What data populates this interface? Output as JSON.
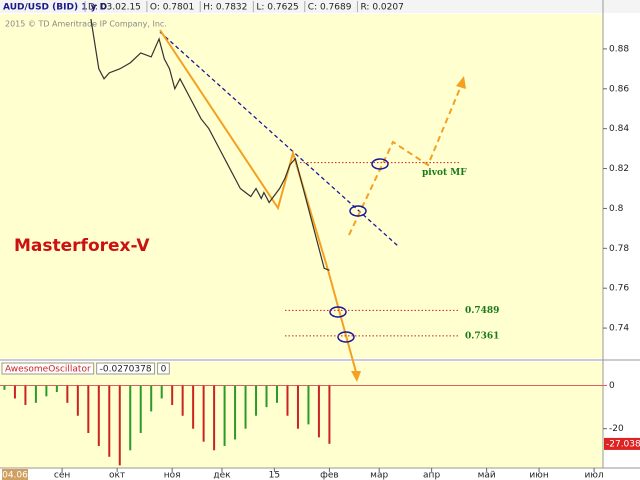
{
  "header": {
    "symbol": "AUD/USD (BID) 1 y D",
    "fields": [
      "D: 03.02.15",
      "O: 0.7801",
      "H: 0.7832",
      "L: 0.7625",
      "C: 0.7689",
      "R: 0.0207"
    ]
  },
  "chart_data": [
    {
      "type": "line",
      "copyright": "2015 © TD Ameritrade IP Company, Inc.",
      "watermark": "Masterforex-V",
      "xlim": [
        -5.7,
        224.4
      ],
      "ylim": [
        0.725,
        0.8975
      ],
      "yticks": [
        0.74,
        0.76,
        0.78,
        0.8,
        0.82,
        0.84,
        0.86,
        0.88
      ],
      "x": [
        29,
        32,
        34,
        36,
        40,
        44,
        48,
        52,
        55,
        57,
        59,
        61,
        63,
        67,
        71,
        74,
        78,
        82,
        84,
        86,
        88,
        90,
        92,
        94,
        95,
        97,
        101,
        103,
        105,
        107,
        109,
        111,
        113,
        115,
        116,
        118,
        120
      ],
      "series": [
        {
          "color": "#333333",
          "values": [
            0.895,
            0.87,
            0.865,
            0.868,
            0.87,
            0.873,
            0.878,
            0.876,
            0.885,
            0.875,
            0.87,
            0.86,
            0.865,
            0.855,
            0.845,
            0.84,
            0.83,
            0.82,
            0.815,
            0.81,
            0.808,
            0.806,
            0.81,
            0.805,
            0.808,
            0.803,
            0.81,
            0.815,
            0.822,
            0.825,
            0.815,
            0.805,
            0.795,
            0.785,
            0.78,
            0.77,
            0.769
          ]
        }
      ],
      "levels": [
        {
          "value": 0.823,
          "label": "pivot MF"
        },
        0.7489,
        0.7361
      ]
    },
    {
      "type": "bar",
      "legend": [
        "AwesomeOscillator",
        "-0.0270378",
        "0"
      ],
      "xlim": [
        -5.7,
        224.4
      ],
      "ylim": [
        -38.2,
        10.9
      ],
      "yticks": [
        0,
        -20
      ],
      "last_value": -27.038,
      "xticks": [
        {
          "value": 18,
          "label": "сен"
        },
        {
          "value": 39,
          "label": "окт"
        },
        {
          "value": 60,
          "label": "ноя"
        },
        {
          "value": 79,
          "label": "дек"
        },
        {
          "value": 99,
          "label": "15"
        },
        {
          "value": 120,
          "label": "фев"
        },
        {
          "value": 139,
          "label": "мар"
        },
        {
          "value": 159,
          "label": "апр"
        },
        {
          "value": 180,
          "label": "май"
        },
        {
          "value": 200,
          "label": "июн"
        },
        {
          "value": 221,
          "label": "июл"
        }
      ],
      "cursor_label": "04.06",
      "x": [
        -4,
        0,
        4,
        8,
        12,
        16,
        20,
        24,
        28,
        32,
        36,
        40,
        44,
        48,
        52,
        56,
        60,
        64,
        68,
        72,
        76,
        80,
        84,
        88,
        92,
        96,
        100,
        104,
        108,
        112,
        116,
        120
      ],
      "values": [
        -2,
        -6,
        -9,
        -8,
        -5,
        -3,
        -8,
        -14,
        -22,
        -28,
        -33,
        -37,
        -30,
        -22,
        -12,
        -6,
        -9,
        -14,
        -20,
        -26,
        -30,
        -28,
        -25,
        -20,
        -14,
        -10,
        -8,
        -14,
        -20,
        -18,
        -24,
        -27
      ]
    }
  ]
}
